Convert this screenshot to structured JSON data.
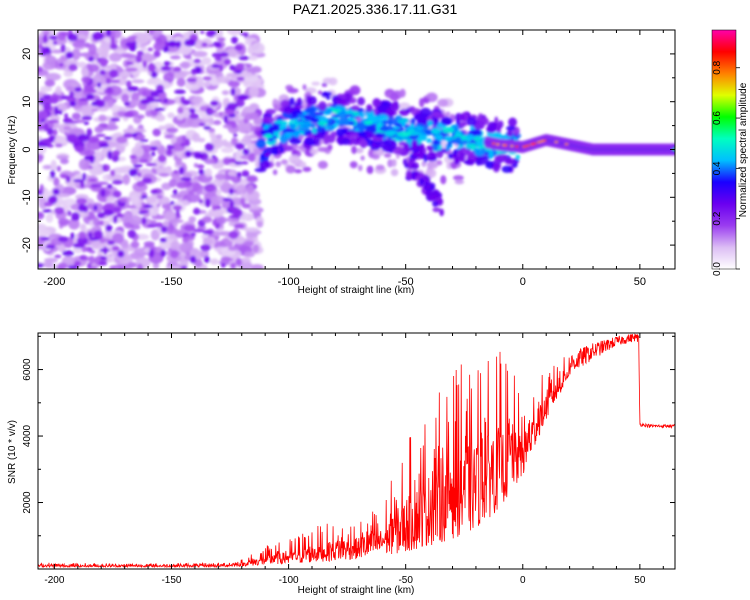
{
  "title": "PAZ1.2025.336.17.11.G31",
  "chart_data": [
    {
      "type": "heatmap",
      "title": "PAZ1.2025.336.17.11.G31",
      "xlabel": "Height of straight line (km)",
      "ylabel": "Frequency (Hz)",
      "xlim": [
        -207,
        65
      ],
      "ylim": [
        -25,
        25
      ],
      "x_ticks": [
        -200,
        -150,
        -100,
        -50,
        0,
        50
      ],
      "y_ticks": [
        -20,
        -10,
        0,
        10,
        20
      ],
      "colorbar": {
        "label": "Normalized spectral amplitude",
        "range": [
          0,
          0.95
        ],
        "ticks": [
          0.0,
          0.2,
          0.4,
          0.6,
          0.8
        ],
        "tick_labels": [
          "0.0",
          "0.2",
          "0.4",
          "0.6",
          "0.8"
        ],
        "colormap": [
          "#ffffff",
          "#dcbdf4",
          "#9a3cf0",
          "#6a00f0",
          "#1a00ff",
          "#00bfff",
          "#00ffc0",
          "#00ff00",
          "#e0ff00",
          "#ff8000",
          "#ff0000",
          "#ff00aa"
        ]
      },
      "description_points": {
        "noise_region_km": [
          -207,
          -118
        ],
        "transition_region_km": [
          -118,
          -25
        ],
        "signal_track_freq_hz": [
          [
            -110,
            3
          ],
          [
            -100,
            5
          ],
          [
            -90,
            6
          ],
          [
            -80,
            7
          ],
          [
            -70,
            6
          ],
          [
            -60,
            5
          ],
          [
            -50,
            4
          ],
          [
            -40,
            3
          ],
          [
            -30,
            2.5
          ],
          [
            -20,
            2
          ],
          [
            -10,
            1
          ],
          [
            0,
            0.5
          ],
          [
            10,
            2
          ],
          [
            20,
            1
          ],
          [
            30,
            0
          ],
          [
            65,
            0
          ]
        ],
        "secondary_branch_freq_hz": [
          [
            -50,
            -3
          ],
          [
            -40,
            -8
          ],
          [
            -35,
            -12
          ]
        ]
      }
    },
    {
      "type": "line",
      "xlabel": "Height of straight line (km)",
      "ylabel": "SNR (10 * v/v)",
      "xlim": [
        -207,
        65
      ],
      "ylim": [
        0,
        7100
      ],
      "x_ticks": [
        -200,
        -150,
        -100,
        -50,
        0,
        50
      ],
      "y_ticks": [
        2000,
        4000,
        6000
      ],
      "color": "#ff0000",
      "series": [
        {
          "name": "SNR",
          "x": [
            -207,
            -190,
            -170,
            -150,
            -130,
            -120,
            -110,
            -100,
            -90,
            -80,
            -70,
            -60,
            -50,
            -40,
            -30,
            -20,
            -10,
            -5,
            0,
            10,
            20,
            30,
            40,
            48,
            49.5,
            50,
            55,
            60,
            65
          ],
          "envelope_low": [
            60,
            60,
            60,
            60,
            60,
            80,
            120,
            150,
            200,
            250,
            300,
            400,
            500,
            700,
            900,
            1200,
            1800,
            2300,
            2800,
            4500,
            5800,
            6300,
            6700,
            6850,
            6800,
            4300,
            4250,
            4250,
            4250
          ],
          "envelope_high": [
            200,
            180,
            180,
            180,
            200,
            300,
            700,
            900,
            1300,
            1400,
            1600,
            2000,
            3800,
            5000,
            6000,
            6500,
            6600,
            6100,
            5200,
            6000,
            6500,
            6800,
            7000,
            7100,
            7050,
            4400,
            4350,
            4350,
            4350
          ]
        }
      ]
    }
  ]
}
